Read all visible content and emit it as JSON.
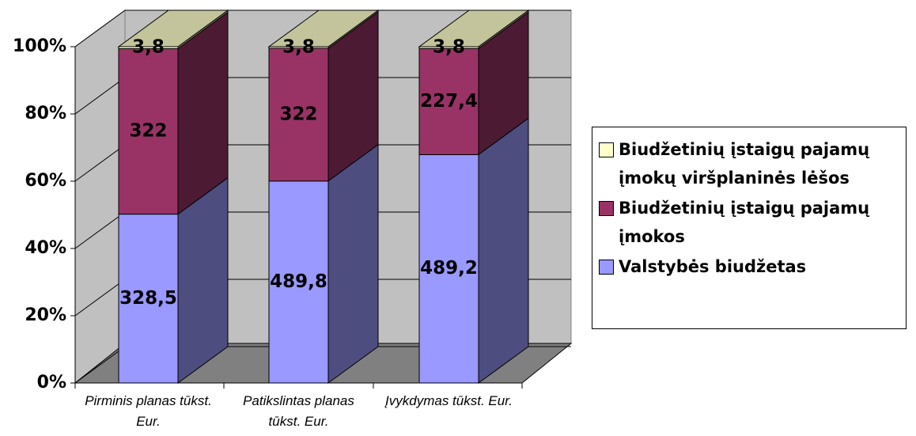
{
  "chart_data": {
    "type": "bar",
    "stacking": "percent",
    "categories": [
      "Pirminis planas tūkst. Eur.",
      "Patikslintas planas tūkst. Eur.",
      "Įvykdymas tūkst. Eur."
    ],
    "series": [
      {
        "name": "Valstybės biudžetas",
        "color": "#9999ff",
        "values": [
          328.5,
          489.8,
          489.2
        ],
        "value_labels": [
          "328,5",
          "489,8",
          "489,2"
        ]
      },
      {
        "name": "Biudžetinių įstaigų pajamų įmokos",
        "color": "#993366",
        "values": [
          322,
          322,
          227.4
        ],
        "value_labels": [
          "322",
          "322",
          "227,4"
        ]
      },
      {
        "name": "Biudžetinių įstaigų pajamų įmokų viršplaninės lėšos",
        "color": "#ffffcc",
        "values": [
          3.8,
          3.8,
          3.8
        ],
        "value_labels": [
          "3,8",
          "3,8",
          "3,8"
        ]
      }
    ],
    "ylim": [
      0,
      100
    ],
    "yticks": [
      {
        "value": 0,
        "label": "0%"
      },
      {
        "value": 20,
        "label": "20%"
      },
      {
        "value": 40,
        "label": "40%"
      },
      {
        "value": 60,
        "label": "60%"
      },
      {
        "value": 80,
        "label": "80%"
      },
      {
        "value": 100,
        "label": "100%"
      }
    ],
    "grid": true,
    "legend": "right"
  }
}
